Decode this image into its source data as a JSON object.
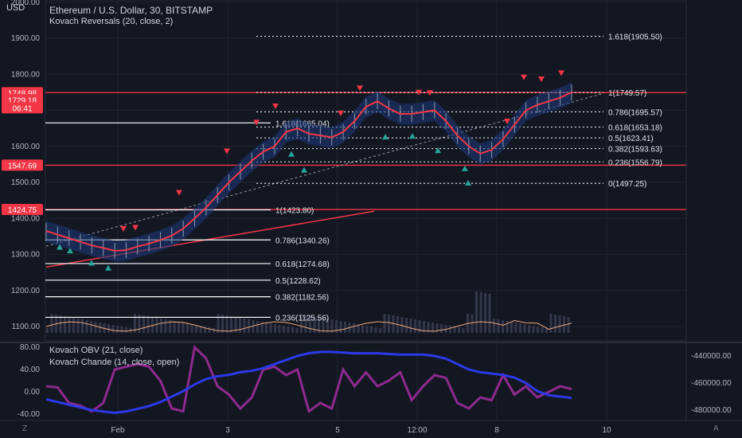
{
  "chart_data": {
    "type": "line",
    "title": "Ethereum / U.S. Dollar, 30, BITSTAMP",
    "indicator_main": "Kovach Reversals (20, close, 2)",
    "indicator_obv": "Kovach OBV (21, close)",
    "indicator_chande": "Kovach Chande (14, close, open)",
    "currency_label": "USD",
    "x_ticks": [
      "Feb",
      "3",
      "5",
      "12:00",
      "8",
      "10"
    ],
    "y_ticks_price": [
      "2000.00",
      "1900.00",
      "1800.00",
      "1700.00",
      "1600.00",
      "1500.00",
      "1400.00",
      "1300.00",
      "1200.00",
      "1100.00"
    ],
    "y_ticks_osc_left": [
      "80.00",
      "40.00",
      "0.00",
      "-40.00"
    ],
    "y_ticks_osc_right": [
      "-440000.00",
      "-460000.00",
      "-480000.00"
    ],
    "price_tags": [
      {
        "text": "1748.98",
        "color": "#f23645"
      },
      {
        "text": "1729.18",
        "color": "#f23645"
      },
      {
        "text": "06:41",
        "color": "#f23645"
      },
      {
        "text": "1547.69",
        "color": "#f23645"
      },
      {
        "text": "1424.75",
        "color": "#f23645"
      }
    ],
    "fib_right": [
      {
        "label": "1.618(1905.50)",
        "value": 1905.5
      },
      {
        "label": "1(1749.57)",
        "value": 1749.57
      },
      {
        "label": "0.786(1695.57)",
        "value": 1695.57
      },
      {
        "label": "0.618(1653.18)",
        "value": 1653.18
      },
      {
        "label": "0.5(1623.41)",
        "value": 1623.41
      },
      {
        "label": "0.382(1593.63)",
        "value": 1593.63
      },
      {
        "label": "0.236(1556.79)",
        "value": 1556.79
      },
      {
        "label": "0(1497.25)",
        "value": 1497.25
      }
    ],
    "fib_left": [
      {
        "label": "1.618(1665.04)",
        "value": 1665.04
      },
      {
        "label": "1(1423.80)",
        "value": 1423.8
      },
      {
        "label": "0.786(1340.26)",
        "value": 1340.26
      },
      {
        "label": "0.618(1274.68)",
        "value": 1274.68
      },
      {
        "label": "0.5(1228.62)",
        "value": 1228.62
      },
      {
        "label": "0.382(1182.56)",
        "value": 1182.56
      },
      {
        "label": "0.236(1125.56)",
        "value": 1125.56
      }
    ],
    "horizontal_levels": [
      1748.98,
      1547.69,
      1424.75
    ],
    "price_series": [
      1365,
      1355,
      1345,
      1335,
      1325,
      1318,
      1310,
      1312,
      1322,
      1330,
      1340,
      1352,
      1372,
      1400,
      1430,
      1465,
      1500,
      1530,
      1560,
      1585,
      1600,
      1640,
      1650,
      1635,
      1630,
      1625,
      1640,
      1670,
      1710,
      1725,
      1705,
      1690,
      1690,
      1695,
      1700,
      1670,
      1630,
      1600,
      1580,
      1590,
      1620,
      1660,
      1700,
      1715,
      1725,
      1735,
      1750
    ],
    "obv_series": [
      -472000,
      -474000,
      -476000,
      -478000,
      -480000,
      -481000,
      -482000,
      -481000,
      -479000,
      -477000,
      -474000,
      -470000,
      -466000,
      -461000,
      -457000,
      -455000,
      -454000,
      -452000,
      -451000,
      -449000,
      -446000,
      -443000,
      -440000,
      -438000,
      -437000,
      -437000,
      -437500,
      -438000,
      -438000,
      -438000,
      -438500,
      -439000,
      -439000,
      -439000,
      -440000,
      -442000,
      -446000,
      -450000,
      -452000,
      -453000,
      -454000,
      -456000,
      -460000,
      -466000,
      -469000,
      -470000,
      -471000
    ],
    "chande_series": [
      10,
      8,
      -20,
      -25,
      -35,
      -20,
      40,
      45,
      50,
      45,
      20,
      -30,
      -35,
      80,
      60,
      10,
      -5,
      -30,
      -10,
      40,
      45,
      30,
      40,
      -35,
      -20,
      -30,
      40,
      10,
      35,
      10,
      20,
      35,
      -15,
      10,
      30,
      25,
      -20,
      -30,
      -10,
      -15,
      30,
      -5,
      10,
      -10,
      0,
      10,
      5
    ],
    "colors": {
      "background": "#131722",
      "price_ma": "#f23645",
      "obv": "#2d39e8",
      "chande": "#8e2a8e",
      "bull_arrow": "#26a69a",
      "bear_arrow": "#f23645",
      "grid": "#2a2e39"
    },
    "buttons": {
      "zoom_left": "Z",
      "zoom_right": "A"
    }
  }
}
